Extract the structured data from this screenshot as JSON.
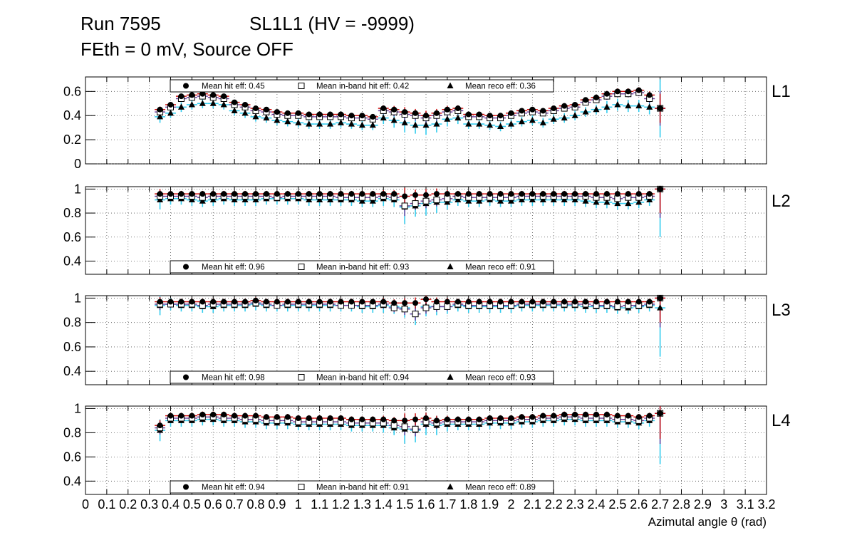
{
  "title": {
    "run": "Run 7595",
    "chamber": "SL1L1 (HV = -9999)",
    "subtitle": "FEth = 0 mV, Source OFF"
  },
  "x_axis": {
    "label": "Azimutal angle θ (rad)",
    "tick_labels": [
      "0",
      "0.1",
      "0.2",
      "0.3",
      "0.4",
      "0.5",
      "0.6",
      "0.7",
      "0.8",
      "0.9",
      "1",
      "1.1",
      "1.2",
      "1.3",
      "1.4",
      "1.5",
      "1.6",
      "1.7",
      "1.8",
      "1.9",
      "2",
      "2.1",
      "2.2",
      "2.3",
      "2.4",
      "2.5",
      "2.6",
      "2.7",
      "2.8",
      "2.9",
      "3",
      "3.1",
      "3.2"
    ]
  },
  "colors": {
    "hit": "#cc0000",
    "inband": "#663399",
    "reco": "#33ccee",
    "marker": "#000000",
    "grid": "#555555"
  },
  "chart_data": [
    {
      "type": "scatter",
      "panel": "L1",
      "label": "L1",
      "ylim": [
        0,
        0.72
      ],
      "yticks": [
        0,
        0.2,
        0.4,
        0.6
      ],
      "ytick_labels": [
        "0",
        "0.2",
        "0.4",
        "0.6"
      ],
      "legend_position": "top",
      "legend": {
        "hit": "Mean hit  eff: 0.45",
        "inband": "Mean in-band hit eff: 0.42",
        "reco": "Mean reco eff: 0.36"
      },
      "x": [
        0.35,
        0.4,
        0.45,
        0.5,
        0.55,
        0.6,
        0.65,
        0.7,
        0.75,
        0.8,
        0.85,
        0.9,
        0.95,
        1.0,
        1.05,
        1.1,
        1.15,
        1.2,
        1.25,
        1.3,
        1.35,
        1.4,
        1.45,
        1.5,
        1.55,
        1.6,
        1.65,
        1.7,
        1.75,
        1.8,
        1.85,
        1.9,
        1.95,
        2.0,
        2.05,
        2.1,
        2.15,
        2.2,
        2.25,
        2.3,
        2.35,
        2.4,
        2.45,
        2.5,
        2.55,
        2.6,
        2.65,
        2.7
      ],
      "series": [
        {
          "name": "hit",
          "values": [
            0.45,
            0.49,
            0.56,
            0.57,
            0.58,
            0.57,
            0.56,
            0.51,
            0.49,
            0.46,
            0.45,
            0.43,
            0.42,
            0.42,
            0.41,
            0.41,
            0.41,
            0.41,
            0.4,
            0.4,
            0.39,
            0.46,
            0.45,
            0.43,
            0.42,
            0.4,
            0.42,
            0.45,
            0.46,
            0.41,
            0.41,
            0.4,
            0.4,
            0.42,
            0.44,
            0.45,
            0.44,
            0.46,
            0.48,
            0.49,
            0.53,
            0.55,
            0.58,
            0.6,
            0.6,
            0.61,
            0.57,
            0.46
          ]
        },
        {
          "name": "inband",
          "values": [
            0.43,
            0.47,
            0.54,
            0.55,
            0.56,
            0.55,
            0.54,
            0.49,
            0.47,
            0.44,
            0.43,
            0.41,
            0.4,
            0.4,
            0.39,
            0.39,
            0.39,
            0.39,
            0.38,
            0.38,
            0.37,
            0.44,
            0.43,
            0.41,
            0.4,
            0.38,
            0.4,
            0.43,
            0.44,
            0.39,
            0.39,
            0.38,
            0.38,
            0.4,
            0.42,
            0.43,
            0.42,
            0.44,
            0.46,
            0.47,
            0.51,
            0.53,
            0.56,
            0.58,
            0.58,
            0.59,
            0.54,
            0.46
          ]
        },
        {
          "name": "reco",
          "values": [
            0.39,
            0.42,
            0.47,
            0.49,
            0.5,
            0.5,
            0.49,
            0.44,
            0.42,
            0.39,
            0.38,
            0.36,
            0.35,
            0.34,
            0.33,
            0.33,
            0.33,
            0.34,
            0.33,
            0.32,
            0.32,
            0.38,
            0.36,
            0.34,
            0.32,
            0.32,
            0.33,
            0.37,
            0.38,
            0.33,
            0.33,
            0.32,
            0.31,
            0.33,
            0.35,
            0.36,
            0.34,
            0.37,
            0.38,
            0.4,
            0.43,
            0.45,
            0.47,
            0.49,
            0.48,
            0.48,
            0.47,
            0.46
          ]
        }
      ],
      "errors": [
        0.05,
        0.04,
        0.04,
        0.04,
        0.04,
        0.04,
        0.04,
        0.04,
        0.04,
        0.04,
        0.04,
        0.04,
        0.04,
        0.04,
        0.04,
        0.04,
        0.04,
        0.04,
        0.04,
        0.04,
        0.04,
        0.05,
        0.06,
        0.08,
        0.07,
        0.08,
        0.07,
        0.06,
        0.05,
        0.04,
        0.04,
        0.04,
        0.04,
        0.04,
        0.04,
        0.04,
        0.04,
        0.04,
        0.04,
        0.04,
        0.04,
        0.04,
        0.05,
        0.05,
        0.05,
        0.05,
        0.06,
        0.24
      ]
    },
    {
      "type": "scatter",
      "panel": "L2",
      "label": "L2",
      "ylim": [
        0.29,
        1.02
      ],
      "yticks": [
        0.4,
        0.6,
        0.8,
        1.0
      ],
      "ytick_labels": [
        "0.4",
        "0.6",
        "0.8",
        "1"
      ],
      "legend_position": "bottom",
      "legend": {
        "hit": "Mean hit  eff: 0.96",
        "inband": "Mean in-band hit eff: 0.93",
        "reco": "Mean reco eff: 0.91"
      },
      "x": [
        0.35,
        0.4,
        0.45,
        0.5,
        0.55,
        0.6,
        0.65,
        0.7,
        0.75,
        0.8,
        0.85,
        0.9,
        0.95,
        1.0,
        1.05,
        1.1,
        1.15,
        1.2,
        1.25,
        1.3,
        1.35,
        1.4,
        1.45,
        1.5,
        1.55,
        1.6,
        1.65,
        1.7,
        1.75,
        1.8,
        1.85,
        1.9,
        1.95,
        2.0,
        2.05,
        2.1,
        2.15,
        2.2,
        2.25,
        2.3,
        2.35,
        2.4,
        2.45,
        2.5,
        2.55,
        2.6,
        2.65,
        2.7
      ],
      "series": [
        {
          "name": "hit",
          "values": [
            0.96,
            0.96,
            0.96,
            0.96,
            0.96,
            0.96,
            0.96,
            0.96,
            0.96,
            0.96,
            0.96,
            0.96,
            0.96,
            0.96,
            0.96,
            0.96,
            0.96,
            0.96,
            0.96,
            0.96,
            0.96,
            0.96,
            0.96,
            0.94,
            0.95,
            0.95,
            0.96,
            0.96,
            0.96,
            0.96,
            0.96,
            0.96,
            0.96,
            0.96,
            0.96,
            0.96,
            0.96,
            0.96,
            0.96,
            0.96,
            0.96,
            0.96,
            0.96,
            0.96,
            0.96,
            0.96,
            0.96,
            1.0
          ]
        },
        {
          "name": "inband",
          "values": [
            0.94,
            0.94,
            0.94,
            0.94,
            0.93,
            0.94,
            0.94,
            0.94,
            0.94,
            0.94,
            0.94,
            0.93,
            0.94,
            0.94,
            0.94,
            0.94,
            0.94,
            0.93,
            0.93,
            0.93,
            0.93,
            0.94,
            0.93,
            0.86,
            0.88,
            0.9,
            0.91,
            0.92,
            0.94,
            0.93,
            0.93,
            0.93,
            0.93,
            0.93,
            0.94,
            0.94,
            0.94,
            0.94,
            0.94,
            0.94,
            0.94,
            0.93,
            0.93,
            0.92,
            0.93,
            0.93,
            0.94,
            1.0
          ]
        },
        {
          "name": "reco",
          "values": [
            0.91,
            0.92,
            0.92,
            0.91,
            0.9,
            0.91,
            0.92,
            0.91,
            0.91,
            0.91,
            0.92,
            0.92,
            0.92,
            0.92,
            0.91,
            0.91,
            0.91,
            0.91,
            0.91,
            0.9,
            0.9,
            0.92,
            0.91,
            0.85,
            0.86,
            0.88,
            0.89,
            0.89,
            0.91,
            0.9,
            0.9,
            0.91,
            0.9,
            0.9,
            0.91,
            0.91,
            0.91,
            0.91,
            0.91,
            0.91,
            0.9,
            0.89,
            0.89,
            0.88,
            0.88,
            0.89,
            0.91,
            1.0
          ]
        }
      ],
      "errors": [
        0.08,
        0.05,
        0.05,
        0.05,
        0.05,
        0.05,
        0.05,
        0.05,
        0.05,
        0.05,
        0.05,
        0.05,
        0.05,
        0.05,
        0.05,
        0.05,
        0.05,
        0.05,
        0.05,
        0.05,
        0.05,
        0.06,
        0.06,
        0.14,
        0.09,
        0.1,
        0.09,
        0.06,
        0.05,
        0.05,
        0.05,
        0.05,
        0.05,
        0.05,
        0.05,
        0.05,
        0.05,
        0.05,
        0.05,
        0.05,
        0.05,
        0.05,
        0.05,
        0.05,
        0.05,
        0.05,
        0.05,
        0.4
      ]
    },
    {
      "type": "scatter",
      "panel": "L3",
      "label": "L3",
      "ylim": [
        0.29,
        1.02
      ],
      "yticks": [
        0.4,
        0.6,
        0.8,
        1.0
      ],
      "ytick_labels": [
        "0.4",
        "0.6",
        "0.8",
        "1"
      ],
      "legend_position": "bottom",
      "legend": {
        "hit": "Mean hit  eff: 0.98",
        "inband": "Mean in-band hit eff: 0.94",
        "reco": "Mean reco eff: 0.93"
      },
      "x": [
        0.35,
        0.4,
        0.45,
        0.5,
        0.55,
        0.6,
        0.65,
        0.7,
        0.75,
        0.8,
        0.85,
        0.9,
        0.95,
        1.0,
        1.05,
        1.1,
        1.15,
        1.2,
        1.25,
        1.3,
        1.35,
        1.4,
        1.45,
        1.5,
        1.55,
        1.6,
        1.65,
        1.7,
        1.75,
        1.8,
        1.85,
        1.9,
        1.95,
        2.0,
        2.05,
        2.1,
        2.15,
        2.2,
        2.25,
        2.3,
        2.35,
        2.4,
        2.45,
        2.5,
        2.55,
        2.6,
        2.65,
        2.7
      ],
      "series": [
        {
          "name": "hit",
          "values": [
            0.97,
            0.97,
            0.97,
            0.97,
            0.97,
            0.97,
            0.97,
            0.97,
            0.97,
            0.98,
            0.97,
            0.97,
            0.97,
            0.97,
            0.97,
            0.97,
            0.97,
            0.97,
            0.97,
            0.97,
            0.97,
            0.97,
            0.96,
            0.96,
            0.96,
            0.99,
            0.97,
            0.97,
            0.97,
            0.97,
            0.97,
            0.97,
            0.97,
            0.97,
            0.97,
            0.97,
            0.97,
            0.97,
            0.97,
            0.97,
            0.97,
            0.97,
            0.97,
            0.97,
            0.97,
            0.97,
            0.97,
            1.0
          ]
        },
        {
          "name": "inband",
          "values": [
            0.95,
            0.95,
            0.95,
            0.95,
            0.94,
            0.95,
            0.95,
            0.95,
            0.95,
            0.96,
            0.95,
            0.94,
            0.95,
            0.95,
            0.95,
            0.95,
            0.95,
            0.94,
            0.94,
            0.94,
            0.94,
            0.95,
            0.92,
            0.91,
            0.87,
            0.92,
            0.93,
            0.93,
            0.95,
            0.94,
            0.94,
            0.94,
            0.94,
            0.94,
            0.95,
            0.95,
            0.95,
            0.95,
            0.95,
            0.95,
            0.95,
            0.94,
            0.94,
            0.93,
            0.94,
            0.94,
            0.95,
            1.0
          ]
        },
        {
          "name": "reco",
          "values": [
            0.94,
            0.95,
            0.94,
            0.94,
            0.93,
            0.93,
            0.94,
            0.94,
            0.94,
            0.95,
            0.94,
            0.94,
            0.94,
            0.94,
            0.94,
            0.94,
            0.94,
            0.94,
            0.94,
            0.93,
            0.93,
            0.94,
            0.93,
            0.92,
            0.87,
            0.93,
            0.93,
            0.93,
            0.94,
            0.93,
            0.93,
            0.93,
            0.93,
            0.93,
            0.94,
            0.94,
            0.94,
            0.94,
            0.94,
            0.94,
            0.93,
            0.93,
            0.93,
            0.92,
            0.92,
            0.93,
            0.94,
            0.92
          ]
        }
      ],
      "errors": [
        0.08,
        0.05,
        0.05,
        0.05,
        0.05,
        0.05,
        0.05,
        0.05,
        0.05,
        0.05,
        0.05,
        0.05,
        0.05,
        0.05,
        0.05,
        0.05,
        0.05,
        0.05,
        0.05,
        0.05,
        0.05,
        0.06,
        0.06,
        0.08,
        0.09,
        0.08,
        0.07,
        0.06,
        0.05,
        0.05,
        0.05,
        0.05,
        0.05,
        0.05,
        0.05,
        0.05,
        0.05,
        0.05,
        0.05,
        0.05,
        0.05,
        0.05,
        0.05,
        0.05,
        0.05,
        0.05,
        0.05,
        0.4
      ]
    },
    {
      "type": "scatter",
      "panel": "L4",
      "label": "L4",
      "ylim": [
        0.29,
        1.02
      ],
      "yticks": [
        0.4,
        0.6,
        0.8,
        1.0
      ],
      "ytick_labels": [
        "0.4",
        "0.6",
        "0.8",
        "1"
      ],
      "legend_position": "bottom",
      "legend": {
        "hit": "Mean hit  eff: 0.94",
        "inband": "Mean in-band hit eff: 0.91",
        "reco": "Mean reco eff: 0.89"
      },
      "x": [
        0.35,
        0.4,
        0.45,
        0.5,
        0.55,
        0.6,
        0.65,
        0.7,
        0.75,
        0.8,
        0.85,
        0.9,
        0.95,
        1.0,
        1.05,
        1.1,
        1.15,
        1.2,
        1.25,
        1.3,
        1.35,
        1.4,
        1.45,
        1.5,
        1.55,
        1.6,
        1.65,
        1.7,
        1.75,
        1.8,
        1.85,
        1.9,
        1.95,
        2.0,
        2.05,
        2.1,
        2.15,
        2.2,
        2.25,
        2.3,
        2.35,
        2.4,
        2.45,
        2.5,
        2.55,
        2.6,
        2.65,
        2.7
      ],
      "series": [
        {
          "name": "hit",
          "values": [
            0.86,
            0.94,
            0.94,
            0.94,
            0.95,
            0.95,
            0.95,
            0.94,
            0.94,
            0.94,
            0.93,
            0.93,
            0.93,
            0.92,
            0.92,
            0.92,
            0.92,
            0.92,
            0.91,
            0.91,
            0.91,
            0.91,
            0.9,
            0.9,
            0.91,
            0.92,
            0.9,
            0.91,
            0.91,
            0.91,
            0.91,
            0.92,
            0.92,
            0.92,
            0.93,
            0.93,
            0.94,
            0.94,
            0.95,
            0.95,
            0.95,
            0.95,
            0.95,
            0.94,
            0.94,
            0.93,
            0.94,
            0.96
          ]
        },
        {
          "name": "inband",
          "values": [
            0.84,
            0.92,
            0.92,
            0.92,
            0.93,
            0.93,
            0.92,
            0.92,
            0.91,
            0.91,
            0.9,
            0.9,
            0.9,
            0.89,
            0.89,
            0.89,
            0.89,
            0.89,
            0.88,
            0.88,
            0.88,
            0.88,
            0.86,
            0.85,
            0.83,
            0.89,
            0.88,
            0.89,
            0.89,
            0.89,
            0.89,
            0.9,
            0.9,
            0.9,
            0.91,
            0.91,
            0.92,
            0.92,
            0.93,
            0.93,
            0.92,
            0.92,
            0.92,
            0.91,
            0.91,
            0.9,
            0.92,
            0.96
          ]
        },
        {
          "name": "reco",
          "values": [
            0.82,
            0.9,
            0.9,
            0.9,
            0.91,
            0.91,
            0.9,
            0.9,
            0.89,
            0.89,
            0.88,
            0.88,
            0.88,
            0.87,
            0.87,
            0.87,
            0.87,
            0.87,
            0.86,
            0.86,
            0.86,
            0.86,
            0.84,
            0.83,
            0.82,
            0.87,
            0.86,
            0.87,
            0.87,
            0.87,
            0.87,
            0.88,
            0.88,
            0.88,
            0.89,
            0.89,
            0.9,
            0.9,
            0.91,
            0.91,
            0.9,
            0.9,
            0.9,
            0.89,
            0.89,
            0.88,
            0.9,
            0.96
          ]
        }
      ],
      "errors": [
        0.09,
        0.05,
        0.05,
        0.05,
        0.05,
        0.05,
        0.05,
        0.05,
        0.05,
        0.05,
        0.05,
        0.05,
        0.05,
        0.05,
        0.05,
        0.05,
        0.05,
        0.05,
        0.05,
        0.05,
        0.05,
        0.06,
        0.06,
        0.12,
        0.1,
        0.09,
        0.08,
        0.06,
        0.05,
        0.05,
        0.05,
        0.05,
        0.05,
        0.05,
        0.05,
        0.05,
        0.05,
        0.05,
        0.05,
        0.05,
        0.05,
        0.05,
        0.05,
        0.05,
        0.05,
        0.05,
        0.05,
        0.42
      ]
    }
  ]
}
